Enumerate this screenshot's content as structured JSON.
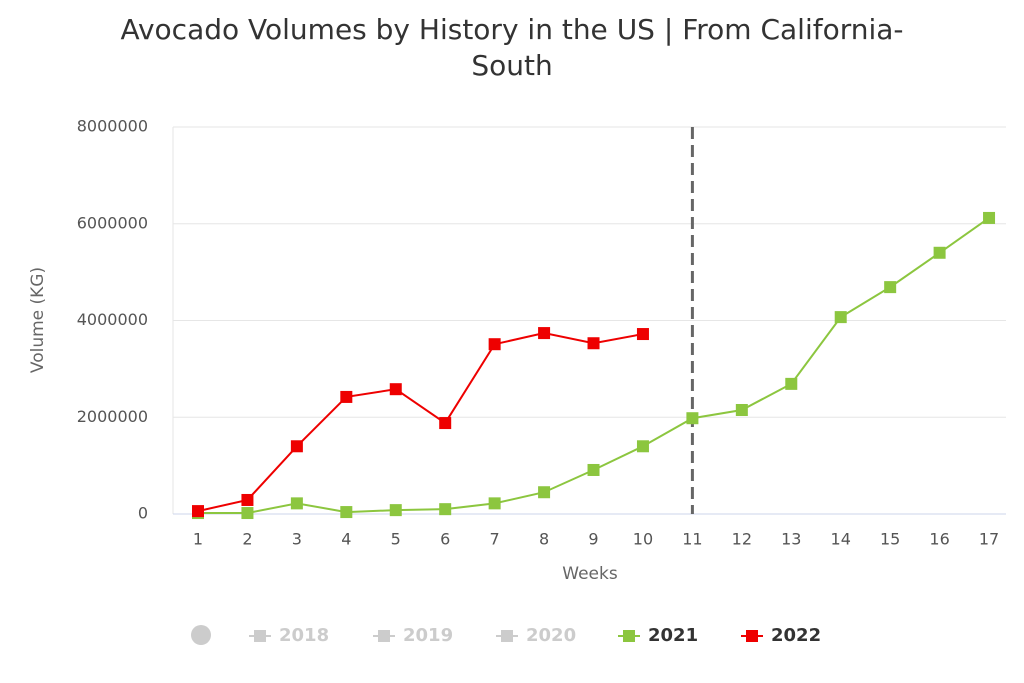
{
  "chart_data": {
    "type": "line",
    "title": "Avocado Volumes by History in the US | From California-South",
    "x_label": "Weeks",
    "y_label": "Volume (KG)",
    "categories": [
      "1",
      "2",
      "3",
      "4",
      "5",
      "6",
      "7",
      "8",
      "9",
      "10",
      "11",
      "12",
      "13",
      "14",
      "15",
      "16",
      "17"
    ],
    "ylim": [
      0,
      8000000
    ],
    "yticks": [
      0,
      2000000,
      4000000,
      6000000,
      8000000
    ],
    "grid": true,
    "plot_line_x": 11,
    "legend": "bottom",
    "series": [
      {
        "name": "2018",
        "color": "#cccccc",
        "visible": false,
        "values": [
          null,
          null,
          null,
          null,
          null,
          null,
          null,
          null,
          null,
          null,
          null,
          null,
          null,
          null,
          null,
          null,
          null
        ]
      },
      {
        "name": "2019",
        "color": "#cccccc",
        "visible": false,
        "values": [
          null,
          null,
          null,
          null,
          null,
          null,
          null,
          null,
          null,
          null,
          null,
          null,
          null,
          null,
          null,
          null,
          null
        ]
      },
      {
        "name": "2020",
        "color": "#cccccc",
        "visible": false,
        "values": [
          null,
          null,
          null,
          null,
          null,
          null,
          null,
          null,
          null,
          null,
          null,
          null,
          null,
          null,
          null,
          null,
          null
        ]
      },
      {
        "name": "2021",
        "color": "#8cc63f",
        "visible": true,
        "values": [
          20000,
          20000,
          220000,
          40000,
          80000,
          100000,
          220000,
          450000,
          910000,
          1400000,
          1980000,
          2150000,
          2690000,
          4070000,
          4690000,
          5400000,
          6120000
        ]
      },
      {
        "name": "2022",
        "color": "#ee0000",
        "visible": true,
        "values": [
          60000,
          290000,
          1400000,
          2420000,
          2580000,
          1880000,
          3510000,
          3740000,
          3530000,
          3720000,
          null,
          null,
          null,
          null,
          null,
          null,
          null
        ]
      }
    ]
  }
}
